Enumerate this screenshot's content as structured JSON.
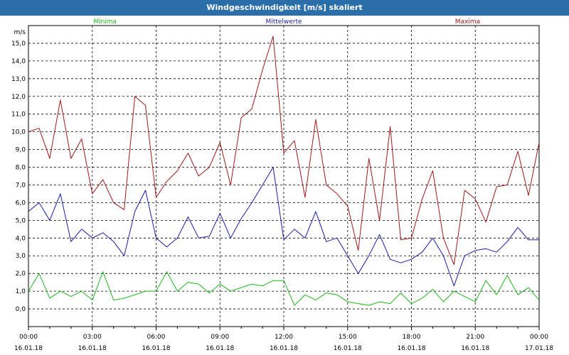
{
  "window": {
    "title": "Windgeschwindigkeit [m/s] skaliert"
  },
  "chart_data": {
    "type": "line",
    "title": "Windgeschwindigkeit [m/s] skaliert",
    "ylabel": "m/s",
    "ylim": [
      -1.0,
      16.0
    ],
    "y_ticks": [
      0.0,
      1.0,
      2.0,
      3.0,
      4.0,
      5.0,
      6.0,
      7.0,
      8.0,
      9.0,
      10.0,
      11.0,
      12.0,
      13.0,
      14.0,
      15.0
    ],
    "y_tick_labels": [
      "0,0",
      "1,0",
      "2,0",
      "3,0",
      "4,0",
      "5,0",
      "6,0",
      "7,0",
      "8,0",
      "9,0",
      "10,0",
      "11,0",
      "12,0",
      "13,0",
      "14,0",
      "15,0"
    ],
    "xlim": [
      0,
      24
    ],
    "x_ticks": [
      0,
      3,
      6,
      9,
      12,
      15,
      18,
      21,
      24
    ],
    "x_tick_time_labels": [
      "00:00",
      "03:00",
      "06:00",
      "09:00",
      "12:00",
      "15:00",
      "18:00",
      "21:00",
      "00:00"
    ],
    "x_tick_date_labels": [
      "16.01.18",
      "16.01.18",
      "16.01.18",
      "16.01.18",
      "16.01.18",
      "16.01.18",
      "16.01.18",
      "16.01.18",
      "17.01.18"
    ],
    "grid": true,
    "legend_position": "top",
    "series": [
      {
        "name": "Minima",
        "color": "#1fb61f",
        "x": [
          0,
          0.5,
          1,
          1.5,
          2,
          2.5,
          3,
          3.5,
          4,
          4.5,
          5,
          5.5,
          6,
          6.5,
          7,
          7.5,
          8,
          8.5,
          9,
          9.5,
          10,
          10.5,
          11,
          11.5,
          12,
          12.5,
          13,
          13.5,
          14,
          14.5,
          15,
          15.5,
          16,
          16.5,
          17,
          17.5,
          18,
          18.5,
          19,
          19.5,
          20,
          20.5,
          21,
          21.5,
          22,
          22.5,
          23,
          23.5,
          24
        ],
        "values": [
          1.0,
          2.0,
          0.6,
          1.0,
          0.7,
          1.0,
          0.5,
          2.1,
          0.5,
          0.6,
          0.8,
          1.0,
          1.0,
          2.1,
          1.0,
          1.5,
          1.4,
          0.9,
          1.4,
          1.0,
          1.2,
          1.4,
          1.3,
          1.6,
          1.6,
          0.2,
          0.8,
          0.5,
          0.9,
          0.8,
          0.4,
          0.3,
          0.2,
          0.4,
          0.3,
          0.9,
          0.3,
          0.6,
          1.1,
          0.4,
          1.0,
          0.7,
          0.4,
          1.6,
          0.8,
          1.9,
          0.8,
          1.2,
          0.5
        ]
      },
      {
        "name": "Mittelwerte",
        "color": "#1a1aa6",
        "x": [
          0,
          0.5,
          1,
          1.5,
          2,
          2.5,
          3,
          3.5,
          4,
          4.5,
          5,
          5.5,
          6,
          6.5,
          7,
          7.5,
          8,
          8.5,
          9,
          9.5,
          10,
          10.5,
          11,
          11.5,
          12,
          12.5,
          13,
          13.5,
          14,
          14.5,
          15,
          15.5,
          16,
          16.5,
          17,
          17.5,
          18,
          18.5,
          19,
          19.5,
          20,
          20.5,
          21,
          21.5,
          22,
          22.5,
          23,
          23.5,
          24
        ],
        "values": [
          5.5,
          6.0,
          5.0,
          6.5,
          3.8,
          4.5,
          4.0,
          4.3,
          3.8,
          3.0,
          5.5,
          6.7,
          4.0,
          3.5,
          4.0,
          5.2,
          4.0,
          4.1,
          5.4,
          4.0,
          5.1,
          6.0,
          7.0,
          8.0,
          3.9,
          4.5,
          4.0,
          5.5,
          3.8,
          4.0,
          3.0,
          2.0,
          3.0,
          4.2,
          2.8,
          2.6,
          2.8,
          3.2,
          4.0,
          3.0,
          1.3,
          3.0,
          3.3,
          3.4,
          3.2,
          3.8,
          4.6,
          3.9,
          3.9
        ]
      },
      {
        "name": "Maxima",
        "color": "#a01818",
        "x": [
          0,
          0.5,
          1,
          1.5,
          2,
          2.5,
          3,
          3.5,
          4,
          4.5,
          5,
          5.5,
          6,
          6.5,
          7,
          7.5,
          8,
          8.5,
          9,
          9.5,
          10,
          10.5,
          11,
          11.5,
          12,
          12.5,
          13,
          13.5,
          14,
          14.5,
          15,
          15.5,
          16,
          16.5,
          17,
          17.5,
          18,
          18.5,
          19,
          19.5,
          20,
          20.5,
          21,
          21.5,
          22,
          22.5,
          23,
          23.5,
          24
        ],
        "values": [
          10.0,
          10.2,
          8.5,
          11.8,
          8.5,
          9.6,
          6.5,
          7.3,
          6.0,
          5.6,
          12.0,
          11.5,
          6.3,
          7.2,
          7.8,
          8.8,
          7.5,
          8.0,
          9.4,
          7.0,
          10.8,
          11.3,
          13.5,
          15.4,
          8.8,
          9.5,
          6.3,
          10.7,
          7.0,
          6.5,
          5.8,
          3.3,
          8.5,
          5.0,
          10.3,
          3.9,
          4.0,
          6.2,
          7.8,
          4.0,
          2.5,
          6.7,
          6.2,
          4.9,
          6.9,
          7.0,
          8.9,
          6.4,
          9.4
        ]
      }
    ]
  }
}
